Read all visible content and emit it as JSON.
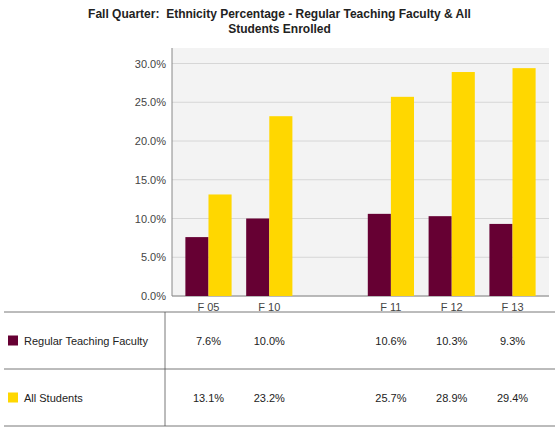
{
  "chart_data": {
    "type": "bar",
    "title": "Fall Quarter:  Ethnicity Percentage - Regular Teaching Faculty & All\nStudents Enrolled",
    "categories": [
      "F 05",
      "F 10",
      null,
      "F 11",
      "F 12",
      "F 13"
    ],
    "series": [
      {
        "name": "Regular Teaching Faculty",
        "color": "#660033",
        "values": [
          7.6,
          10.0,
          null,
          10.6,
          10.3,
          9.3
        ],
        "value_labels": [
          "7.6%",
          "10.0%",
          null,
          "10.6%",
          "10.3%",
          "9.3%"
        ]
      },
      {
        "name": "All Students",
        "color": "#FFD700",
        "values": [
          13.1,
          23.2,
          null,
          25.7,
          28.9,
          29.4
        ],
        "value_labels": [
          "13.1%",
          "23.2%",
          null,
          "25.7%",
          "28.9%",
          "29.4%"
        ]
      }
    ],
    "ylim": [
      0,
      32
    ],
    "yticks": [
      {
        "value": 0,
        "label": "0.0%"
      },
      {
        "value": 5,
        "label": "5.0%"
      },
      {
        "value": 10,
        "label": "10.0%"
      },
      {
        "value": 15,
        "label": "15.0%"
      },
      {
        "value": 20,
        "label": "20.0%"
      },
      {
        "value": 25,
        "label": "25.0%"
      },
      {
        "value": 30,
        "label": "30.0%"
      }
    ],
    "grid": true,
    "legend": "bottom",
    "data_labels": true
  }
}
